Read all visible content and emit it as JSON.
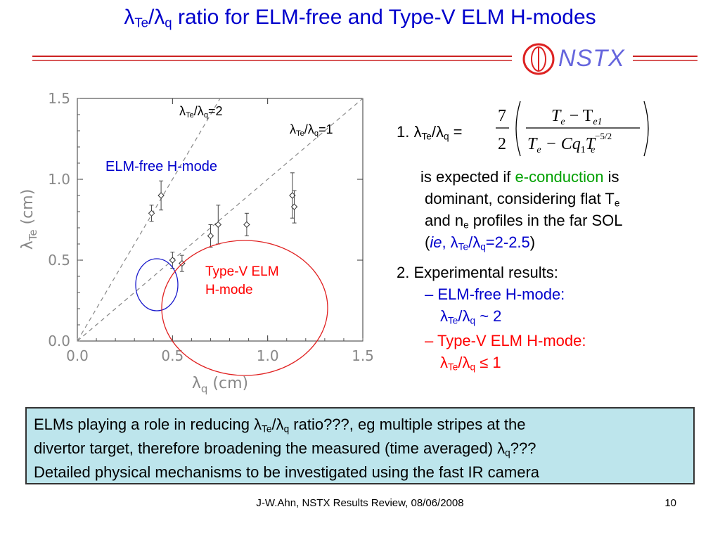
{
  "slide": {
    "title": {
      "lambda": "λ",
      "sub1": "Te",
      "slash": "/λ",
      "sub2": "q",
      "rest": " ratio for ELM-free and Type-V ELM H-modes"
    },
    "logo": {
      "text": "NSTX"
    },
    "colors": {
      "title": "#0000cc",
      "accent_red": "#ff0000",
      "conduction_green": "#00a000",
      "note_bg": "#bde5ec",
      "logo_red": "#dd2222"
    },
    "plot_labels": {
      "line2": {
        "a": "λ",
        "s1": "Te",
        "b": "/λ",
        "s2": "q",
        "c": "=2"
      },
      "line1": {
        "a": "λ",
        "s1": "Te",
        "b": "/λ",
        "s2": "q",
        "c": "=1"
      },
      "elm_free": "ELM-free H-mode",
      "type_v_line1": "Type-V ELM",
      "type_v_line2": "H-mode"
    },
    "item1": {
      "prefix": "1.  λ",
      "s1": "Te",
      "mid": "/λ",
      "s2": "q",
      "eq": " ="
    },
    "formula": {
      "coef_num": "7",
      "coef_den": "2",
      "num": "T",
      "num_e": "e",
      "num_minus": " − T",
      "num_e1": "e1",
      "den_T": "T",
      "den_e": "e",
      "den_minus": " − Cq",
      "den_1": "1",
      "den_T2": "T",
      "den_exp": "−5/2",
      "den_e2": "e"
    },
    "para": {
      "l1a": "is expected if ",
      "l1b": "e-conduction",
      "l1c": " is",
      "l2a": "dominant, considering flat T",
      "l2b": "e",
      "l3a": "and n",
      "l3b": "e",
      "l3c": " profiles in the far SOL",
      "l4a": "(",
      "l4b": "ie",
      "l4c": ", λ",
      "l4d": "Te",
      "l4e": "/λ",
      "l4f": "q",
      "l4g": "=2-2.5",
      "l4h": ")"
    },
    "item2": {
      "head": "2. Experimental results:",
      "elmfree": "– ELM-free H-mode:",
      "elmfree_val": {
        "a": "λ",
        "s1": "Te",
        "b": "/λ",
        "s2": "q",
        "c": " ~ 2"
      },
      "dash": "–",
      "typev": " Type-V ELM H-mode:",
      "typev_val": {
        "a": "λ",
        "s1": "Te",
        "b": "/λ",
        "s2": "q",
        "c": " ≤ 1"
      }
    },
    "note": {
      "l1a": "ELMs playing a role in reducing λ",
      "l1b": "Te",
      "l1c": "/λ",
      "l1d": "q",
      "l1e": " ratio???, eg multiple stripes at the",
      "l2a": "divertor target, therefore broadening the measured (time averaged) λ",
      "l2b": "q",
      "l2c": "???",
      "l3": "Detailed physical mechanisms to be investigated using the fast IR camera"
    },
    "footer": "J-W.Ahn, NSTX Results Review, 08/06/2008",
    "page": "10"
  },
  "chart_data": {
    "type": "scatter",
    "xlabel": "λq (cm)",
    "ylabel": "λTe (cm)",
    "xlim": [
      0,
      1.5
    ],
    "ylim": [
      0,
      1.5
    ],
    "xticks": [
      "0.0",
      "0.5",
      "1.0",
      "1.5"
    ],
    "yticks": [
      "0.0",
      "0.5",
      "1.0",
      "1.5"
    ],
    "ref_lines": [
      {
        "label": "λTe/λq=2",
        "slope": 2
      },
      {
        "label": "λTe/λq=1",
        "slope": 1
      }
    ],
    "points": [
      {
        "x": 0.39,
        "y": 0.79,
        "err": 0.05
      },
      {
        "x": 0.44,
        "y": 0.9,
        "err": 0.09
      },
      {
        "x": 0.5,
        "y": 0.5,
        "err": 0.05
      },
      {
        "x": 0.55,
        "y": 0.48,
        "err": 0.05
      },
      {
        "x": 0.7,
        "y": 0.65,
        "err": 0.07
      },
      {
        "x": 0.74,
        "y": 0.72,
        "err": 0.12
      },
      {
        "x": 0.89,
        "y": 0.72,
        "err": 0.07
      },
      {
        "x": 1.13,
        "y": 0.9,
        "err": 0.14
      },
      {
        "x": 1.14,
        "y": 0.83,
        "err": 0.1
      }
    ],
    "groups": [
      {
        "name": "ELM-free H-mode",
        "color": "#0000cc"
      },
      {
        "name": "Type-V ELM H-mode",
        "color": "#ff0000"
      }
    ],
    "grid": false
  }
}
